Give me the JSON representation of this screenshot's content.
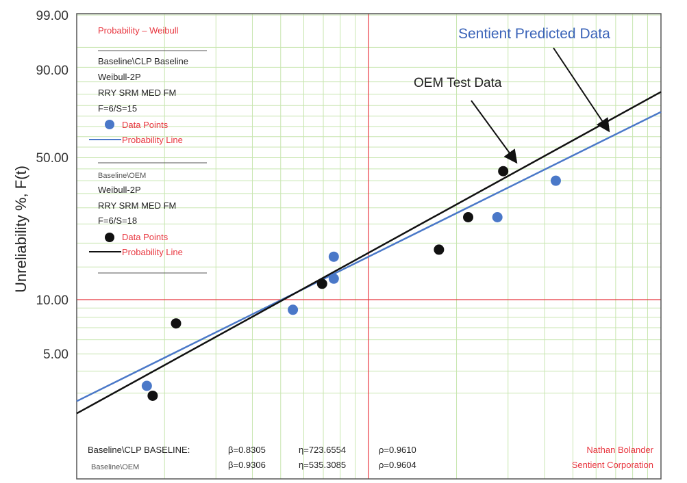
{
  "chart_data": {
    "type": "scatter",
    "scale": "weibull-probability",
    "ylabel": "Unreliability %, F(t)",
    "y_ticks": [
      "99.00",
      "90.00",
      "50.00",
      "10.00",
      "5.00"
    ],
    "ylim": [
      2.5,
      99
    ],
    "grid": true,
    "series": [
      {
        "name": "Baseline\\CLP Baseline",
        "color": "#4a78c8",
        "points": [
          {
            "x": 0.12,
            "y": 3.3
          },
          {
            "x": 0.37,
            "y": 8.8
          },
          {
            "x": 0.44,
            "y": 13.0
          },
          {
            "x": 0.44,
            "y": 17.0
          },
          {
            "x": 0.72,
            "y": 27.0
          },
          {
            "x": 0.82,
            "y": 40.0
          }
        ],
        "fit_line": [
          {
            "x": 0.0,
            "y": 2.7
          },
          {
            "x": 1.0,
            "y": 72.0
          }
        ]
      },
      {
        "name": "Baseline\\OEM",
        "color": "#111111",
        "points": [
          {
            "x": 0.13,
            "y": 2.9
          },
          {
            "x": 0.17,
            "y": 7.4
          },
          {
            "x": 0.42,
            "y": 12.2
          },
          {
            "x": 0.62,
            "y": 18.5
          },
          {
            "x": 0.67,
            "y": 27.0
          },
          {
            "x": 0.73,
            "y": 44.0
          }
        ],
        "fit_line": [
          {
            "x": 0.0,
            "y": 2.3
          },
          {
            "x": 1.0,
            "y": 81.0
          }
        ]
      }
    ],
    "legend": {
      "title": "Probability – Weibull",
      "block1": {
        "label": "Baseline\\CLP Baseline",
        "model": "Weibull-2P",
        "method": "RRY SRM MED FM",
        "fs": "F=6/S=15",
        "points_label": "Data Points",
        "line_label": "Probability Line"
      },
      "block2": {
        "label": "Baseline\\OEM",
        "model": "Weibull-2P",
        "method": "RRY SRM MED FM",
        "fs": "F=6/S=18",
        "points_label": "Data Points",
        "line_label": "Probability Line"
      }
    },
    "annotations": {
      "sentient": "Sentient Predicted Data",
      "oem": "OEM Test Data"
    },
    "stats": [
      {
        "label": "Baseline\\CLP BASELINE:",
        "beta": "β=0.8305",
        "eta": "η=723.6554",
        "rho": "ρ=0.9610"
      },
      {
        "label": "Baseline\\OEM",
        "beta": "β=0.9306",
        "eta": "η=535.3085",
        "rho": "ρ=0.9604"
      }
    ],
    "credit": [
      "Nathan Bolander",
      "Sentient Corporation"
    ],
    "colors": {
      "blue": "#4a78c8",
      "black": "#111111",
      "red": "#e8363f",
      "grid": "#c8e6b0",
      "annot_blue": "#3a63b8"
    }
  }
}
